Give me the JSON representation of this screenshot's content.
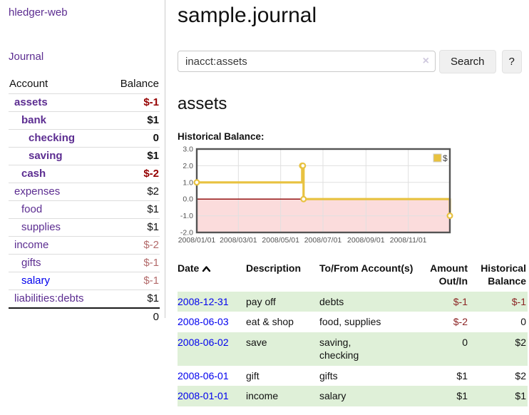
{
  "app": {
    "brand": "hledger-web",
    "nav_journal": "Journal"
  },
  "sidebar": {
    "accounts": {
      "header_account": "Account",
      "header_balance": "Balance",
      "rows": [
        {
          "name": "assets",
          "depth": 1,
          "bold": true,
          "balance": "$-1",
          "negative": true
        },
        {
          "name": "bank",
          "depth": 2,
          "bold": true,
          "balance": "$1",
          "negative": false
        },
        {
          "name": "checking",
          "depth": 3,
          "bold": true,
          "balance": "0",
          "negative": false
        },
        {
          "name": "saving",
          "depth": 3,
          "bold": true,
          "balance": "$1",
          "negative": false
        },
        {
          "name": "cash",
          "depth": 2,
          "bold": true,
          "balance": "$-2",
          "negative": true
        },
        {
          "name": "expenses",
          "depth": 1,
          "bold": false,
          "balance": "$2",
          "negative": false
        },
        {
          "name": "food",
          "depth": 2,
          "bold": false,
          "balance": "$1",
          "negative": false
        },
        {
          "name": "supplies",
          "depth": 2,
          "bold": false,
          "balance": "$1",
          "negative": false
        },
        {
          "name": "income",
          "depth": 1,
          "bold": false,
          "balance": "$-2",
          "negative": true
        },
        {
          "name": "gifts",
          "depth": 2,
          "bold": false,
          "balance": "$-1",
          "negative": true
        },
        {
          "name": "salary",
          "depth": 2,
          "bold": false,
          "balance": "$-1",
          "negative": true,
          "link_blue": true
        },
        {
          "name": "liabilities:debts",
          "depth": 1,
          "bold": false,
          "balance": "$1",
          "negative": false
        }
      ],
      "total": "0"
    }
  },
  "main": {
    "title": "sample.journal",
    "search": {
      "value": "inacct:assets",
      "clear_icon": "×",
      "button_label": "Search",
      "help_label": "?"
    },
    "account_heading": "assets",
    "chart_label": "Historical Balance:"
  },
  "chart_data": {
    "type": "line",
    "title": "Historical Balance",
    "x_range": [
      "2008-01-01",
      "2008-12-31"
    ],
    "ylim": [
      -2,
      3
    ],
    "points": [
      {
        "x": "2008-01-01",
        "y": 1
      },
      {
        "x": "2008-06-01",
        "y": 2
      },
      {
        "x": "2008-06-02",
        "y": 2
      },
      {
        "x": "2008-06-03",
        "y": 0
      },
      {
        "x": "2008-12-31",
        "y": -1
      }
    ],
    "step": true,
    "yticks": [
      {
        "value": 3,
        "label": "3.0"
      },
      {
        "value": 2,
        "label": "2.0"
      },
      {
        "value": 1,
        "label": "1.0"
      },
      {
        "value": 0,
        "label": "0.0"
      },
      {
        "value": -1,
        "label": "-1.0"
      },
      {
        "value": -2,
        "label": "-2.0"
      }
    ],
    "xticks": [
      {
        "date": "2008-01-01",
        "label": "2008/01/01"
      },
      {
        "date": "2008-03-01",
        "label": "2008/03/01"
      },
      {
        "date": "2008-05-01",
        "label": "2008/05/01"
      },
      {
        "date": "2008-07-01",
        "label": "2008/07/01"
      },
      {
        "date": "2008-09-01",
        "label": "2008/09/01"
      },
      {
        "date": "2008-11-01",
        "label": "2008/11/01"
      }
    ],
    "legend": {
      "label": "$",
      "position": "top-right"
    },
    "grid": true,
    "colors": {
      "series": "#e8c240",
      "marker_fill": "#ffffff",
      "negative_region_fill": "#fbdcdc",
      "zero_line": "#8b0000",
      "gridline": "#e0e0e0",
      "plot_border": "#545454",
      "tick_text": "#545454"
    }
  },
  "register": {
    "headers": {
      "date": "Date",
      "description": "Description",
      "accounts": "To/From Account(s)",
      "amount": "Amount Out/In",
      "balance": "Historical Balance"
    },
    "rows": [
      {
        "date": "2008-12-31",
        "description": "pay off",
        "accounts": "debts",
        "amount": "$-1",
        "balance": "$-1"
      },
      {
        "date": "2008-06-03",
        "description": "eat & shop",
        "accounts": "food, supplies",
        "amount": "$-2",
        "balance": "0"
      },
      {
        "date": "2008-06-02",
        "description": "save",
        "accounts": "saving,\nchecking",
        "amount": "0",
        "balance": "$2"
      },
      {
        "date": "2008-06-01",
        "description": "gift",
        "accounts": "gifts",
        "amount": "$1",
        "balance": "$2"
      },
      {
        "date": "2008-01-01",
        "description": "income",
        "accounts": "salary",
        "amount": "$1",
        "balance": "$1"
      }
    ]
  }
}
